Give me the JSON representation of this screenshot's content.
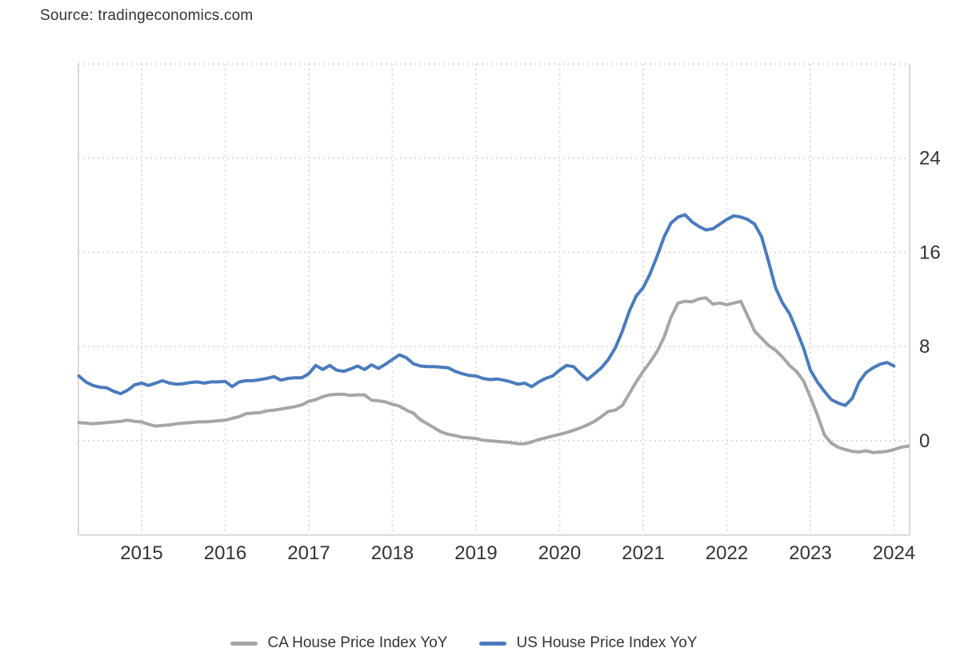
{
  "source": {
    "text": "Source: tradingeconomics.com"
  },
  "legend": {
    "items": [
      {
        "id": "ca",
        "label": "CA House Price Index YoY",
        "color": "#a6a6a6"
      },
      {
        "id": "us",
        "label": "US House Price Index YoY",
        "color": "#4a7bbd"
      }
    ]
  },
  "chart_data": {
    "type": "line",
    "title": "",
    "xlabel": "",
    "ylabel": "",
    "grid": "dotted",
    "legend_position": "bottom",
    "x_ticks": [
      2015,
      2016,
      2017,
      2018,
      2019,
      2020,
      2021,
      2022,
      2023,
      2024
    ],
    "y_ticks": [
      0,
      8,
      16,
      24
    ],
    "y_gridlines": [
      0,
      8,
      16,
      24,
      32
    ],
    "x_range": [
      2014.24,
      2024.19
    ],
    "y_range": [
      -8,
      32
    ],
    "series": [
      {
        "id": "ca",
        "name": "CA House Price Index YoY",
        "color": "#a6a6a6",
        "points": [
          [
            2014.25,
            1.55
          ],
          [
            2014.333,
            1.5
          ],
          [
            2014.417,
            1.45
          ],
          [
            2014.5,
            1.5
          ],
          [
            2014.583,
            1.55
          ],
          [
            2014.667,
            1.6
          ],
          [
            2014.75,
            1.65
          ],
          [
            2014.833,
            1.75
          ],
          [
            2014.917,
            1.65
          ],
          [
            2015.0,
            1.6
          ],
          [
            2015.083,
            1.4
          ],
          [
            2015.167,
            1.25
          ],
          [
            2015.25,
            1.3
          ],
          [
            2015.333,
            1.35
          ],
          [
            2015.417,
            1.45
          ],
          [
            2015.5,
            1.5
          ],
          [
            2015.583,
            1.55
          ],
          [
            2015.667,
            1.6
          ],
          [
            2015.75,
            1.6
          ],
          [
            2015.833,
            1.65
          ],
          [
            2015.917,
            1.7
          ],
          [
            2016.0,
            1.75
          ],
          [
            2016.083,
            1.9
          ],
          [
            2016.167,
            2.05
          ],
          [
            2016.25,
            2.3
          ],
          [
            2016.333,
            2.35
          ],
          [
            2016.417,
            2.4
          ],
          [
            2016.5,
            2.55
          ],
          [
            2016.583,
            2.6
          ],
          [
            2016.667,
            2.7
          ],
          [
            2016.75,
            2.8
          ],
          [
            2016.833,
            2.9
          ],
          [
            2016.917,
            3.05
          ],
          [
            2017.0,
            3.35
          ],
          [
            2017.083,
            3.5
          ],
          [
            2017.167,
            3.75
          ],
          [
            2017.25,
            3.9
          ],
          [
            2017.333,
            3.95
          ],
          [
            2017.417,
            3.95
          ],
          [
            2017.5,
            3.85
          ],
          [
            2017.583,
            3.9
          ],
          [
            2017.667,
            3.9
          ],
          [
            2017.75,
            3.45
          ],
          [
            2017.833,
            3.4
          ],
          [
            2017.917,
            3.3
          ],
          [
            2018.0,
            3.1
          ],
          [
            2018.083,
            2.95
          ],
          [
            2018.167,
            2.6
          ],
          [
            2018.25,
            2.35
          ],
          [
            2018.333,
            1.8
          ],
          [
            2018.417,
            1.45
          ],
          [
            2018.5,
            1.1
          ],
          [
            2018.583,
            0.75
          ],
          [
            2018.667,
            0.55
          ],
          [
            2018.75,
            0.45
          ],
          [
            2018.833,
            0.3
          ],
          [
            2018.917,
            0.25
          ],
          [
            2019.0,
            0.2
          ],
          [
            2019.083,
            0.05
          ],
          [
            2019.167,
            0.0
          ],
          [
            2019.25,
            -0.05
          ],
          [
            2019.333,
            -0.1
          ],
          [
            2019.417,
            -0.15
          ],
          [
            2019.5,
            -0.25
          ],
          [
            2019.583,
            -0.25
          ],
          [
            2019.667,
            -0.1
          ],
          [
            2019.75,
            0.1
          ],
          [
            2019.833,
            0.25
          ],
          [
            2019.917,
            0.4
          ],
          [
            2020.0,
            0.55
          ],
          [
            2020.083,
            0.7
          ],
          [
            2020.167,
            0.9
          ],
          [
            2020.25,
            1.1
          ],
          [
            2020.333,
            1.35
          ],
          [
            2020.417,
            1.65
          ],
          [
            2020.5,
            2.05
          ],
          [
            2020.583,
            2.5
          ],
          [
            2020.667,
            2.6
          ],
          [
            2020.75,
            3.0
          ],
          [
            2020.833,
            4.0
          ],
          [
            2020.917,
            5.0
          ],
          [
            2021.0,
            5.9
          ],
          [
            2021.083,
            6.7
          ],
          [
            2021.167,
            7.6
          ],
          [
            2021.25,
            8.8
          ],
          [
            2021.333,
            10.5
          ],
          [
            2021.417,
            11.7
          ],
          [
            2021.5,
            11.85
          ],
          [
            2021.583,
            11.8
          ],
          [
            2021.667,
            12.05
          ],
          [
            2021.75,
            12.15
          ],
          [
            2021.833,
            11.6
          ],
          [
            2021.917,
            11.7
          ],
          [
            2022.0,
            11.55
          ],
          [
            2022.083,
            11.7
          ],
          [
            2022.167,
            11.85
          ],
          [
            2022.25,
            10.6
          ],
          [
            2022.333,
            9.3
          ],
          [
            2022.417,
            8.7
          ],
          [
            2022.5,
            8.1
          ],
          [
            2022.583,
            7.7
          ],
          [
            2022.667,
            7.1
          ],
          [
            2022.75,
            6.4
          ],
          [
            2022.833,
            5.9
          ],
          [
            2022.917,
            5.1
          ],
          [
            2023.0,
            3.7
          ],
          [
            2023.083,
            2.2
          ],
          [
            2023.167,
            0.5
          ],
          [
            2023.25,
            -0.2
          ],
          [
            2023.333,
            -0.55
          ],
          [
            2023.417,
            -0.75
          ],
          [
            2023.5,
            -0.9
          ],
          [
            2023.583,
            -0.95
          ],
          [
            2023.667,
            -0.85
          ],
          [
            2023.75,
            -1.0
          ],
          [
            2023.833,
            -0.95
          ],
          [
            2023.917,
            -0.9
          ],
          [
            2024.0,
            -0.75
          ],
          [
            2024.083,
            -0.55
          ],
          [
            2024.167,
            -0.45
          ]
        ]
      },
      {
        "id": "us",
        "name": "US House Price Index YoY",
        "color": "#4a7bbd",
        "points": [
          [
            2014.25,
            5.5
          ],
          [
            2014.333,
            5.0
          ],
          [
            2014.417,
            4.7
          ],
          [
            2014.5,
            4.55
          ],
          [
            2014.583,
            4.5
          ],
          [
            2014.667,
            4.2
          ],
          [
            2014.75,
            4.0
          ],
          [
            2014.833,
            4.3
          ],
          [
            2014.917,
            4.75
          ],
          [
            2015.0,
            4.9
          ],
          [
            2015.083,
            4.7
          ],
          [
            2015.167,
            4.9
          ],
          [
            2015.25,
            5.1
          ],
          [
            2015.333,
            4.9
          ],
          [
            2015.417,
            4.8
          ],
          [
            2015.5,
            4.85
          ],
          [
            2015.583,
            4.95
          ],
          [
            2015.667,
            5.0
          ],
          [
            2015.75,
            4.9
          ],
          [
            2015.833,
            5.0
          ],
          [
            2015.917,
            5.0
          ],
          [
            2016.0,
            5.05
          ],
          [
            2016.083,
            4.6
          ],
          [
            2016.167,
            5.0
          ],
          [
            2016.25,
            5.1
          ],
          [
            2016.333,
            5.1
          ],
          [
            2016.417,
            5.2
          ],
          [
            2016.5,
            5.3
          ],
          [
            2016.583,
            5.45
          ],
          [
            2016.667,
            5.15
          ],
          [
            2016.75,
            5.3
          ],
          [
            2016.833,
            5.35
          ],
          [
            2016.917,
            5.35
          ],
          [
            2017.0,
            5.7
          ],
          [
            2017.083,
            6.4
          ],
          [
            2017.167,
            6.05
          ],
          [
            2017.25,
            6.4
          ],
          [
            2017.333,
            6.0
          ],
          [
            2017.417,
            5.9
          ],
          [
            2017.5,
            6.1
          ],
          [
            2017.583,
            6.35
          ],
          [
            2017.667,
            6.05
          ],
          [
            2017.75,
            6.45
          ],
          [
            2017.833,
            6.15
          ],
          [
            2017.917,
            6.5
          ],
          [
            2018.0,
            6.9
          ],
          [
            2018.083,
            7.3
          ],
          [
            2018.167,
            7.05
          ],
          [
            2018.25,
            6.55
          ],
          [
            2018.333,
            6.35
          ],
          [
            2018.417,
            6.3
          ],
          [
            2018.5,
            6.3
          ],
          [
            2018.583,
            6.25
          ],
          [
            2018.667,
            6.2
          ],
          [
            2018.75,
            5.9
          ],
          [
            2018.833,
            5.7
          ],
          [
            2018.917,
            5.55
          ],
          [
            2019.0,
            5.5
          ],
          [
            2019.083,
            5.3
          ],
          [
            2019.167,
            5.2
          ],
          [
            2019.25,
            5.25
          ],
          [
            2019.333,
            5.15
          ],
          [
            2019.417,
            5.0
          ],
          [
            2019.5,
            4.8
          ],
          [
            2019.583,
            4.9
          ],
          [
            2019.667,
            4.6
          ],
          [
            2019.75,
            5.0
          ],
          [
            2019.833,
            5.3
          ],
          [
            2019.917,
            5.5
          ],
          [
            2020.0,
            6.0
          ],
          [
            2020.083,
            6.4
          ],
          [
            2020.167,
            6.3
          ],
          [
            2020.25,
            5.7
          ],
          [
            2020.333,
            5.2
          ],
          [
            2020.417,
            5.7
          ],
          [
            2020.5,
            6.2
          ],
          [
            2020.583,
            6.9
          ],
          [
            2020.667,
            7.9
          ],
          [
            2020.75,
            9.3
          ],
          [
            2020.833,
            11.0
          ],
          [
            2020.917,
            12.3
          ],
          [
            2021.0,
            13.0
          ],
          [
            2021.083,
            14.2
          ],
          [
            2021.167,
            15.7
          ],
          [
            2021.25,
            17.3
          ],
          [
            2021.333,
            18.5
          ],
          [
            2021.417,
            19.0
          ],
          [
            2021.5,
            19.2
          ],
          [
            2021.583,
            18.6
          ],
          [
            2021.667,
            18.2
          ],
          [
            2021.75,
            17.9
          ],
          [
            2021.833,
            18.0
          ],
          [
            2021.917,
            18.4
          ],
          [
            2022.0,
            18.8
          ],
          [
            2022.083,
            19.1
          ],
          [
            2022.167,
            19.0
          ],
          [
            2022.25,
            18.8
          ],
          [
            2022.333,
            18.4
          ],
          [
            2022.417,
            17.3
          ],
          [
            2022.5,
            15.2
          ],
          [
            2022.583,
            13.0
          ],
          [
            2022.667,
            11.7
          ],
          [
            2022.75,
            10.8
          ],
          [
            2022.833,
            9.4
          ],
          [
            2022.917,
            7.9
          ],
          [
            2023.0,
            6.0
          ],
          [
            2023.083,
            5.0
          ],
          [
            2023.167,
            4.2
          ],
          [
            2023.25,
            3.5
          ],
          [
            2023.333,
            3.2
          ],
          [
            2023.417,
            3.0
          ],
          [
            2023.5,
            3.6
          ],
          [
            2023.583,
            5.0
          ],
          [
            2023.667,
            5.8
          ],
          [
            2023.75,
            6.2
          ],
          [
            2023.833,
            6.5
          ],
          [
            2023.917,
            6.65
          ],
          [
            2024.0,
            6.35
          ]
        ]
      }
    ]
  }
}
